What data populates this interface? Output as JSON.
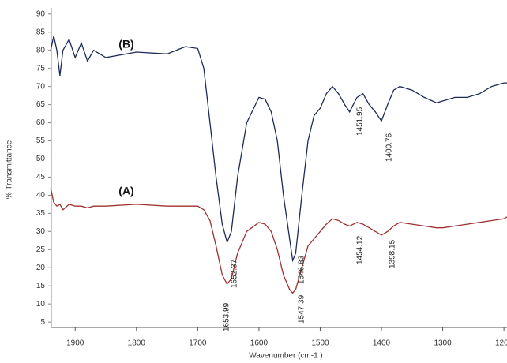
{
  "chart_data": {
    "type": "line",
    "x_label": "Wavenumber  (cm-1 )",
    "y_label": "% Transmittance",
    "x": [
      1940,
      1935,
      1930,
      1925,
      1920,
      1910,
      1900,
      1890,
      1880,
      1870,
      1860,
      1850,
      1800,
      1750,
      1720,
      1700,
      1690,
      1680,
      1670,
      1660,
      1652,
      1645,
      1635,
      1620,
      1600,
      1590,
      1580,
      1570,
      1560,
      1550,
      1545,
      1540,
      1530,
      1520,
      1510,
      1500,
      1490,
      1480,
      1470,
      1460,
      1452,
      1440,
      1430,
      1420,
      1410,
      1400,
      1390,
      1380,
      1370,
      1350,
      1330,
      1310,
      1300,
      1280,
      1260,
      1240,
      1220,
      1200,
      1195
    ],
    "series": [
      {
        "name": "(B)",
        "color": "#1f2a5a",
        "values": [
          80,
          84,
          80,
          73,
          80,
          83,
          78,
          82,
          77,
          80,
          79,
          78,
          79.5,
          79,
          81,
          80.5,
          75,
          60,
          45,
          32,
          27,
          30,
          45,
          60,
          67,
          66.5,
          63,
          55,
          40,
          28,
          22,
          24,
          40,
          55,
          62,
          64,
          68,
          70,
          68,
          65,
          63,
          67,
          68,
          65,
          63,
          60.5,
          65,
          69,
          70,
          69,
          67,
          65.5,
          66,
          67,
          67,
          68,
          70,
          71,
          71
        ]
      },
      {
        "name": "(A)",
        "color": "#a03030",
        "values": [
          42,
          38,
          37,
          37.5,
          36,
          37.5,
          37,
          37,
          36.5,
          37,
          37,
          37,
          37.5,
          37,
          37,
          37,
          36,
          33,
          26,
          18,
          15.5,
          17,
          24,
          30,
          32.5,
          32,
          30,
          25,
          18,
          14,
          13,
          14,
          20,
          26,
          28,
          30,
          32,
          33.5,
          33,
          32,
          31.5,
          32.5,
          32,
          31,
          30,
          29,
          30,
          31.5,
          32.5,
          32,
          31.5,
          31,
          31,
          31.5,
          32,
          32.5,
          33,
          33.5,
          34
        ]
      }
    ],
    "annotations": [
      "1652.37",
      "1653.99",
      "1547.39",
      "1546.83",
      "1451.95",
      "1400.76",
      "1454.12",
      "1398.15"
    ],
    "xlim": [
      1939,
      1195
    ],
    "xticks": [
      1900,
      1800,
      1700,
      1600,
      1500,
      1400,
      1300,
      1200
    ],
    "ylim": [
      3.5,
      91.7
    ],
    "yticks": [
      5,
      10,
      15,
      20,
      25,
      30,
      35,
      40,
      45,
      50,
      55,
      60,
      65,
      70,
      75,
      80,
      85,
      90
    ]
  }
}
